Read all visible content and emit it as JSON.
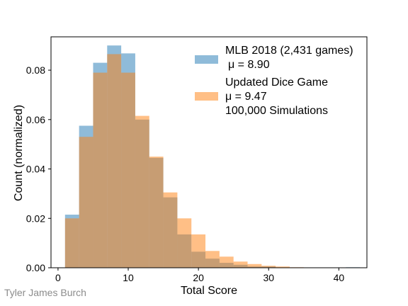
{
  "chart_data": {
    "type": "bar",
    "subtype": "overlaid-histogram",
    "xlabel": "Total Score",
    "ylabel": "Count (normalized)",
    "xlim": [
      -1,
      44
    ],
    "ylim": [
      0,
      0.0935
    ],
    "x_ticks": [
      0,
      10,
      20,
      30,
      40
    ],
    "y_ticks": [
      0.0,
      0.02,
      0.04,
      0.06,
      0.08
    ],
    "y_tick_labels": [
      "0.00",
      "0.02",
      "0.04",
      "0.06",
      "0.08"
    ],
    "bin_width": 2,
    "bin_starts": [
      1,
      3,
      5,
      7,
      9,
      11,
      13,
      15,
      17,
      19,
      21,
      23,
      25,
      27,
      29,
      31,
      33,
      35,
      37,
      39,
      41
    ],
    "legend_position": "top-right",
    "grid": false,
    "series": [
      {
        "name": "MLB 2018 (2,431 games)",
        "mean_label": "μ = 8.90",
        "color": "#1f77b4",
        "alpha": 0.5,
        "values": [
          0.0215,
          0.0575,
          0.083,
          0.09,
          0.0868,
          0.06,
          0.0445,
          0.0285,
          0.0135,
          0.0065,
          0.0037,
          0.002,
          0.0012,
          0.0005,
          0.0005,
          0,
          0,
          0,
          0,
          0,
          0.0002
        ]
      },
      {
        "name": "Updated Dice Game",
        "mean_label": "μ = 9.47",
        "extra_label": "100,000 Simulations",
        "color": "#ff7f0e",
        "alpha": 0.5,
        "values": [
          0.02,
          0.053,
          0.079,
          0.0865,
          0.079,
          0.0615,
          0.045,
          0.0305,
          0.02,
          0.0135,
          0.0068,
          0.0045,
          0.0025,
          0.0015,
          0.0008,
          0.0005,
          0.0002,
          0,
          0,
          0,
          0
        ]
      }
    ]
  },
  "watermark": "Tyler James Burch"
}
